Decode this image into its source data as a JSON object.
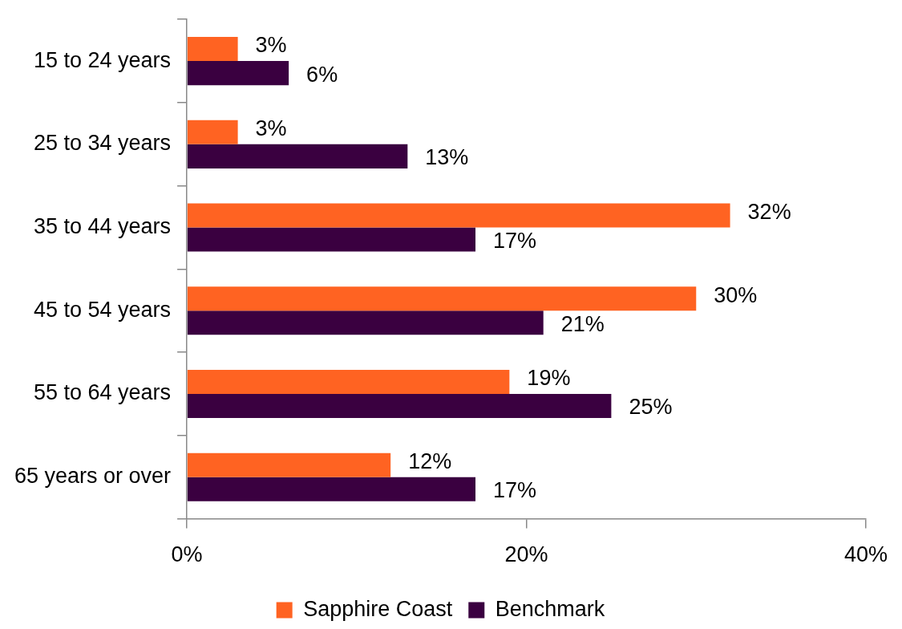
{
  "chart_data": {
    "type": "bar",
    "orientation": "horizontal",
    "categories": [
      "15 to 24 years",
      "25 to 34 years",
      "35 to 44 years",
      "45 to 54 years",
      "55 to 64 years",
      "65 years or over"
    ],
    "series": [
      {
        "name": "Sapphire Coast",
        "color": "#ff6322",
        "values": [
          3,
          3,
          32,
          30,
          19,
          12
        ],
        "value_labels": [
          "3%",
          "3%",
          "32%",
          "30%",
          "19%",
          "12%"
        ]
      },
      {
        "name": "Benchmark",
        "color": "#3a0040",
        "values": [
          6,
          13,
          17,
          21,
          25,
          17
        ],
        "value_labels": [
          "6%",
          "13%",
          "17%",
          "21%",
          "25%",
          "17%"
        ]
      }
    ],
    "xlim": [
      0,
      40
    ],
    "xticks": [
      {
        "value": 0,
        "label": "0%"
      },
      {
        "value": 20,
        "label": "20%"
      },
      {
        "value": 40,
        "label": "40%"
      }
    ],
    "grid": false,
    "legend": "bottom"
  }
}
